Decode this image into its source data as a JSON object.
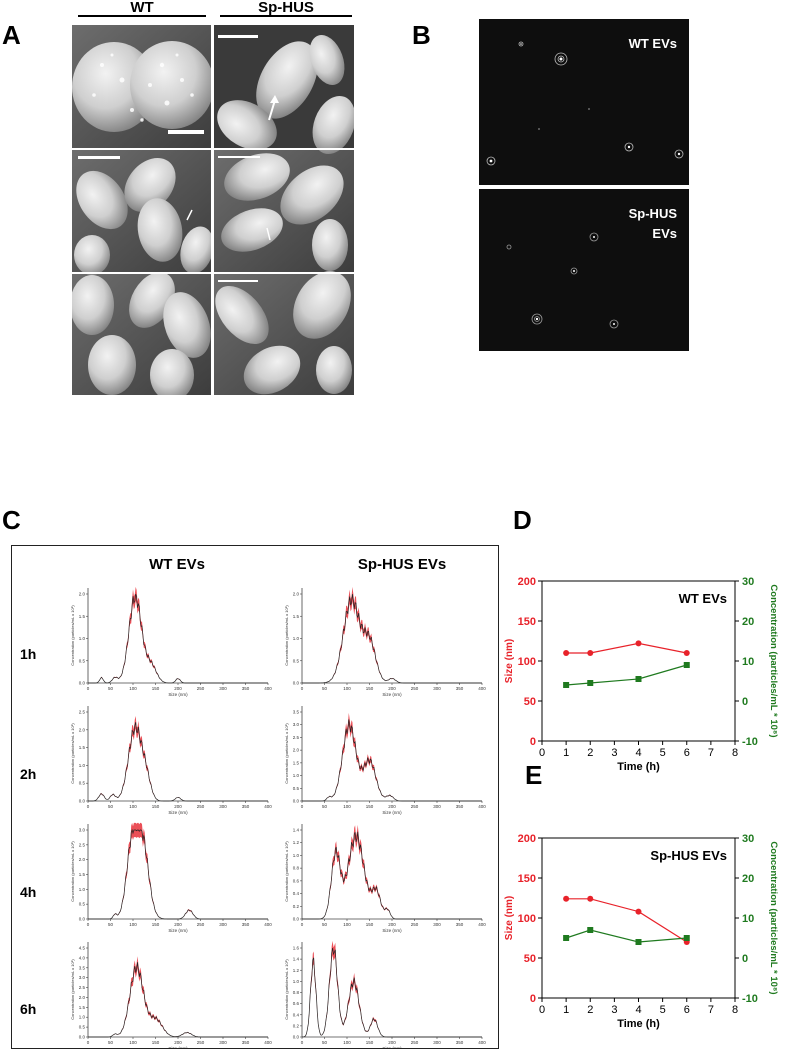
{
  "panels": {
    "A": {
      "letter": "A",
      "col_headers": [
        "WT",
        "Sp-HUS"
      ]
    },
    "B": {
      "letter": "B",
      "labels": [
        "WT EVs",
        "Sp-HUS\nEVs"
      ],
      "label_lines": [
        [
          "WT EVs"
        ],
        [
          "Sp-HUS",
          "EVs"
        ]
      ]
    },
    "C": {
      "letter": "C",
      "col_headers": [
        "WT EVs",
        "Sp-HUS EVs"
      ],
      "row_labels": [
        "1h",
        "2h",
        "4h",
        "6h"
      ],
      "xlabel": "Size (nm)",
      "ylabel": "Concentration (particles/mL x 10⁸)",
      "x_ticks": [
        "0",
        "50",
        "100",
        "150",
        "200",
        "250",
        "300",
        "350",
        "400"
      ],
      "y_ticks": [
        [
          [
            "0.0",
            "0.5",
            "1.0",
            "1.5",
            "2.0"
          ],
          [
            "0.0",
            "0.5",
            "1.0",
            "1.5",
            "2.0"
          ]
        ],
        [
          [
            "0.0",
            "0.5",
            "1.0",
            "1.5",
            "2.0",
            "2.5"
          ],
          [
            "0.0",
            "0.5",
            "1.0",
            "1.5",
            "2.0",
            "2.5",
            "3.0",
            "3.5"
          ]
        ],
        [
          [
            "0.0",
            "0.5",
            "1.0",
            "1.5",
            "2.0",
            "2.5",
            "3.0"
          ],
          [
            "0.0",
            "0.2",
            "0.4",
            "0.6",
            "0.8",
            "1.0",
            "1.2",
            "1.4"
          ]
        ],
        [
          [
            "0.0",
            "0.5",
            "1.0",
            "1.5",
            "2.0",
            "2.5",
            "3.0",
            "3.5",
            "4.0",
            "4.5"
          ],
          [
            "0.0",
            "0.2",
            "0.4",
            "0.6",
            "0.8",
            "1.0",
            "1.2",
            "1.4",
            "1.6"
          ]
        ]
      ]
    },
    "D": {
      "letter": "D"
    },
    "E": {
      "letter": "E"
    }
  },
  "chart_data": [
    {
      "panel": "D",
      "type": "line",
      "title": "WT EVs",
      "xlabel": "Time (h)",
      "ylabel_left": "Size (nm)",
      "ylabel_right": "Concentration (particles/mL * 10⁸)",
      "xlim": [
        0,
        8
      ],
      "ylim_left": [
        0,
        200
      ],
      "ylim_right": [
        -10,
        30
      ],
      "x_ticks": [
        0,
        1,
        2,
        3,
        4,
        5,
        6,
        7,
        8
      ],
      "y_ticks_left": [
        0,
        50,
        100,
        150,
        200
      ],
      "y_ticks_right": [
        -10,
        0,
        10,
        20,
        30
      ],
      "series": [
        {
          "axis": "left",
          "color": "#e8222a",
          "marker": "circle",
          "x": [
            1,
            2,
            4,
            6
          ],
          "values": [
            110,
            110,
            122,
            110
          ]
        },
        {
          "axis": "right",
          "color": "#1f7a1f",
          "marker": "square",
          "x": [
            1,
            2,
            4,
            6
          ],
          "values": [
            4,
            4.5,
            5.5,
            9
          ]
        }
      ]
    },
    {
      "panel": "E",
      "type": "line",
      "title": "Sp-HUS EVs",
      "xlabel": "Time (h)",
      "ylabel_left": "Size (nm)",
      "ylabel_right": "Concentration (particles/mL * 10⁸)",
      "xlim": [
        0,
        8
      ],
      "ylim_left": [
        0,
        200
      ],
      "ylim_right": [
        -10,
        30
      ],
      "x_ticks": [
        0,
        1,
        2,
        3,
        4,
        5,
        6,
        7,
        8
      ],
      "y_ticks_left": [
        0,
        50,
        100,
        150,
        200
      ],
      "y_ticks_right": [
        -10,
        0,
        10,
        20,
        30
      ],
      "series": [
        {
          "axis": "left",
          "color": "#e8222a",
          "marker": "circle",
          "x": [
            1,
            2,
            4,
            6
          ],
          "values": [
            124,
            124,
            108,
            70
          ]
        },
        {
          "axis": "right",
          "color": "#1f7a1f",
          "marker": "square",
          "x": [
            1,
            2,
            4,
            6
          ],
          "values": [
            5,
            7,
            4,
            5
          ]
        }
      ]
    }
  ],
  "colors": {
    "size_series": "#e8222a",
    "conc_series": "#1f7a1f",
    "nta_fill": "#e8303a",
    "nta_line": "#222222"
  }
}
